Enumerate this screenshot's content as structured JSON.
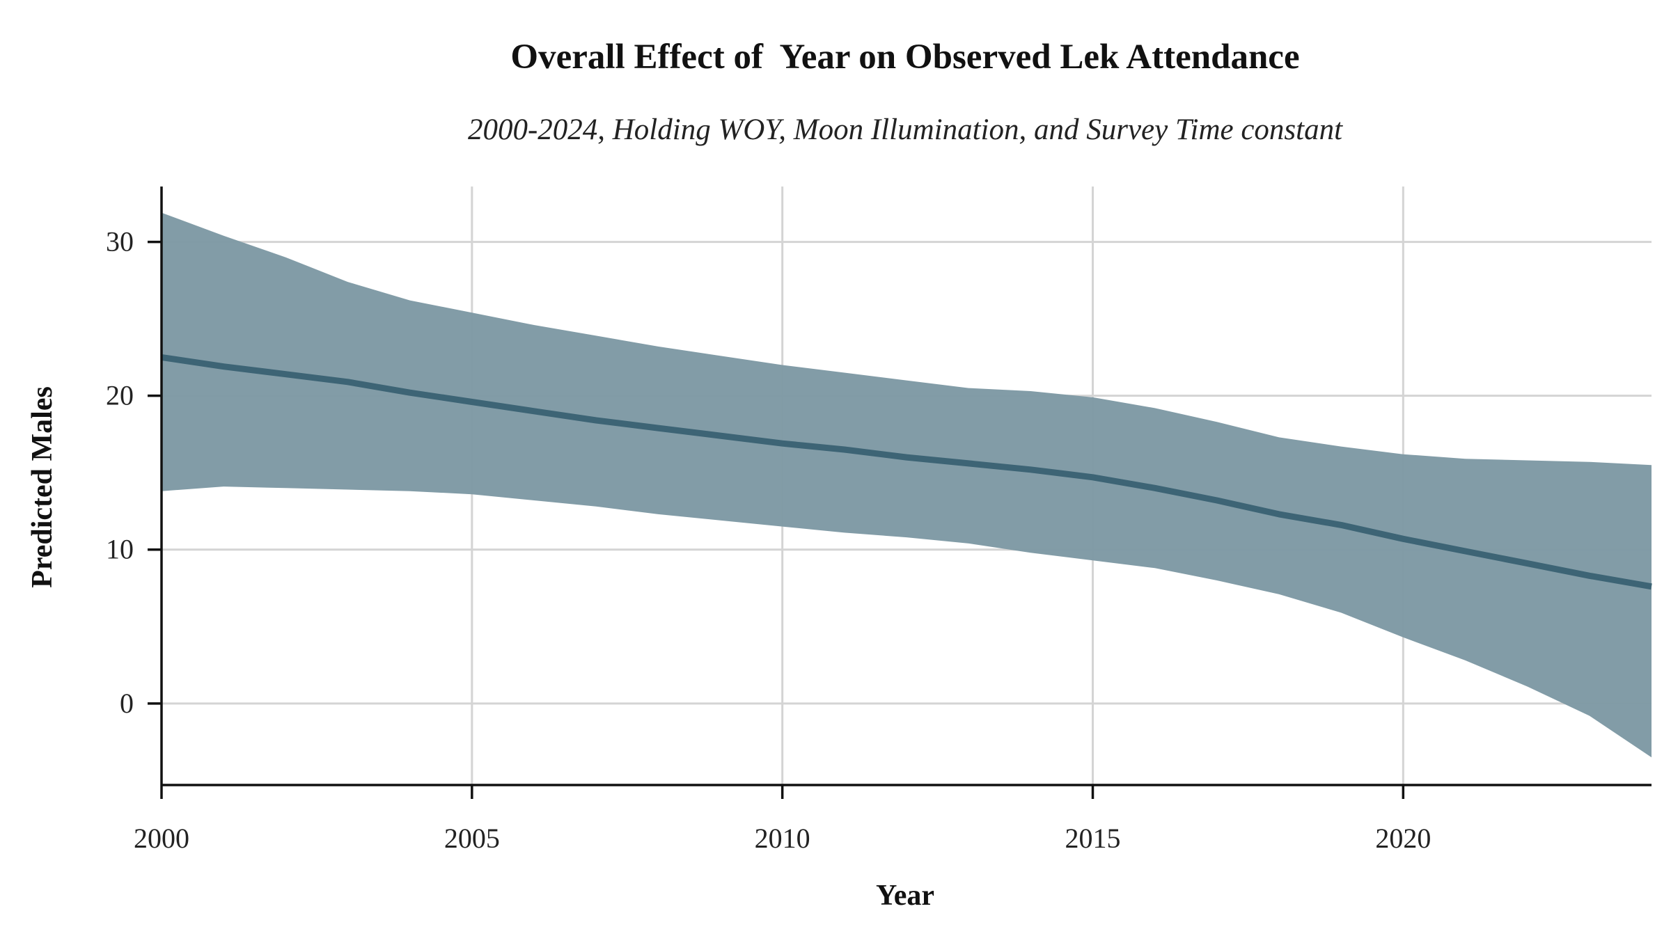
{
  "chart_data": {
    "type": "line",
    "title": "Overall Effect of  Year on Observed Lek Attendance",
    "subtitle": "2000-2024, Holding WOY, Moon Illumination, and Survey Time constant",
    "xlabel": "Year",
    "ylabel": "Predicted Males",
    "xlim": [
      2000,
      2024
    ],
    "ylim": [
      -5.3,
      33.6
    ],
    "x_ticks": [
      2000,
      2005,
      2010,
      2015,
      2020
    ],
    "y_ticks": [
      0,
      10,
      20,
      30
    ],
    "x_tick_labels": [
      "2000",
      "2005",
      "2010",
      "2015",
      "2020"
    ],
    "y_tick_labels": [
      "0",
      "10",
      "20",
      "30"
    ],
    "grid": true,
    "legend": "none",
    "series": [
      {
        "kind": "line",
        "x": [
          2000,
          2001,
          2002,
          2003,
          2004,
          2005,
          2006,
          2007,
          2008,
          2009,
          2010,
          2011,
          2012,
          2013,
          2014,
          2015,
          2016,
          2017,
          2018,
          2019,
          2020,
          2021,
          2022,
          2023,
          2024
        ],
        "y": [
          22.5,
          21.9,
          21.4,
          20.9,
          20.2,
          19.6,
          19.0,
          18.4,
          17.9,
          17.4,
          16.9,
          16.5,
          16.0,
          15.6,
          15.2,
          14.7,
          14.0,
          13.2,
          12.3,
          11.6,
          10.7,
          9.9,
          9.1,
          8.3,
          7.6
        ],
        "color": "#3d6475"
      },
      {
        "kind": "band",
        "x": [
          2000,
          2001,
          2002,
          2003,
          2004,
          2005,
          2006,
          2007,
          2008,
          2009,
          2010,
          2011,
          2012,
          2013,
          2014,
          2015,
          2016,
          2017,
          2018,
          2019,
          2020,
          2021,
          2022,
          2023,
          2024
        ],
        "upper": [
          31.9,
          30.4,
          29.0,
          27.4,
          26.2,
          25.4,
          24.6,
          23.9,
          23.2,
          22.6,
          22.0,
          21.5,
          21.0,
          20.5,
          20.3,
          19.9,
          19.2,
          18.3,
          17.3,
          16.7,
          16.2,
          15.9,
          15.8,
          15.7,
          15.5
        ],
        "lower": [
          13.8,
          14.1,
          14.0,
          13.9,
          13.8,
          13.6,
          13.2,
          12.8,
          12.3,
          11.9,
          11.5,
          11.1,
          10.8,
          10.4,
          9.8,
          9.3,
          8.8,
          8.0,
          7.1,
          5.9,
          4.3,
          2.8,
          1.1,
          -0.8,
          -3.5
        ],
        "color": "#7f9aa5"
      }
    ]
  }
}
